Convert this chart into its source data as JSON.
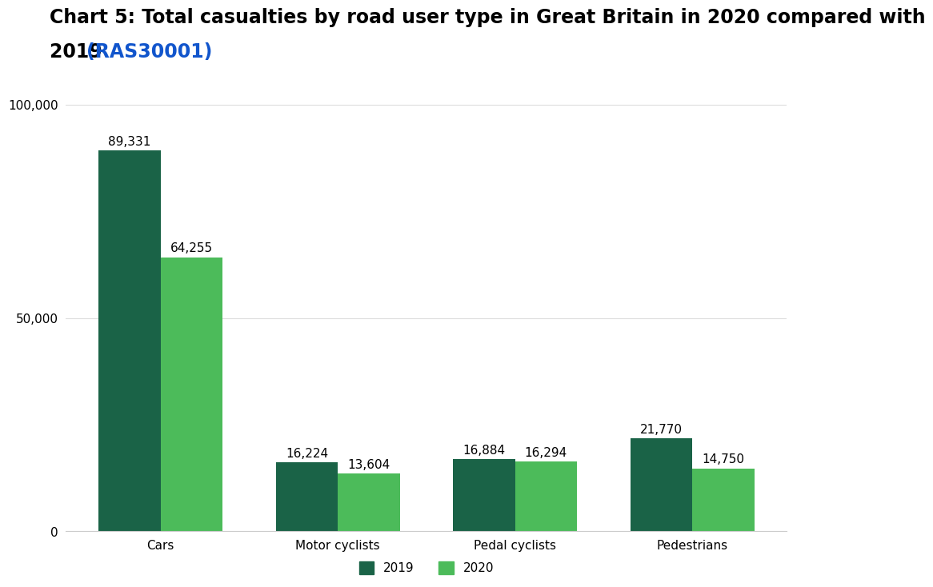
{
  "title_line1": "Chart 5: Total casualties by road user type in Great Britain in 2020 compared with",
  "title_line2": "2019 ",
  "title_link": "(RAS30001)",
  "categories": [
    "Cars",
    "Motor cyclists",
    "Pedal cyclists",
    "Pedestrians"
  ],
  "values_2019": [
    89331,
    16224,
    16884,
    21770
  ],
  "values_2020": [
    64255,
    13604,
    16294,
    14750
  ],
  "labels_2019": [
    "89,331",
    "16,224",
    "16,884",
    "21,770"
  ],
  "labels_2020": [
    "64,255",
    "13,604",
    "16,294",
    "14,750"
  ],
  "color_2019": "#1a6347",
  "color_2020": "#4cbb5a",
  "bar_width": 0.35,
  "ylim": [
    0,
    105000
  ],
  "yticks": [
    0,
    50000,
    100000
  ],
  "ytick_labels": [
    "0",
    "50,000",
    "100,000"
  ],
  "background_color": "#ffffff",
  "title_fontsize": 17,
  "label_fontsize": 11,
  "tick_fontsize": 11,
  "legend_fontsize": 11
}
